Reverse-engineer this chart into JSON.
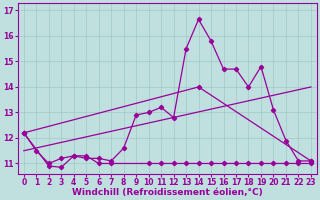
{
  "xlabel": "Windchill (Refroidissement éolien,°C)",
  "bg_color": "#c0e0e0",
  "line_color": "#990099",
  "grid_color": "#a0c8c8",
  "xlim": [
    -0.5,
    23.5
  ],
  "ylim": [
    10.6,
    17.3
  ],
  "yticks": [
    11,
    12,
    13,
    14,
    15,
    16,
    17
  ],
  "xticks": [
    0,
    1,
    2,
    3,
    4,
    5,
    6,
    7,
    8,
    9,
    10,
    11,
    12,
    13,
    14,
    15,
    16,
    17,
    18,
    19,
    20,
    21,
    22,
    23
  ],
  "line1_x": [
    0,
    1,
    2,
    3,
    4,
    5,
    6,
    7,
    8,
    9,
    10,
    11,
    12,
    13,
    14,
    15,
    16,
    17,
    18,
    19,
    20,
    21,
    22,
    23
  ],
  "line1_y": [
    12.2,
    11.5,
    11.0,
    11.2,
    11.3,
    11.2,
    11.2,
    11.1,
    11.6,
    12.9,
    13.0,
    13.2,
    12.8,
    15.5,
    16.65,
    15.8,
    14.7,
    14.7,
    14.0,
    14.8,
    13.1,
    11.9,
    11.1,
    11.1
  ],
  "line2_x": [
    0,
    2,
    3,
    4,
    5,
    6,
    7,
    10,
    11,
    12,
    13,
    14,
    15,
    16,
    17,
    18,
    19,
    20,
    21,
    22,
    23
  ],
  "line2_y": [
    12.2,
    10.9,
    10.85,
    11.3,
    11.3,
    11.0,
    11.0,
    11.0,
    11.0,
    11.0,
    11.0,
    11.0,
    11.0,
    11.0,
    11.0,
    11.0,
    11.0,
    11.0,
    11.0,
    11.0,
    11.0
  ],
  "line3_x": [
    0,
    23
  ],
  "line3_y": [
    11.5,
    14.0
  ],
  "line4_x": [
    0,
    14,
    23
  ],
  "line4_y": [
    12.2,
    14.0,
    11.1
  ],
  "marker": "D",
  "markersize": 2.2,
  "linewidth": 0.9,
  "tick_fontsize": 5.5,
  "xlabel_fontsize": 6.5
}
